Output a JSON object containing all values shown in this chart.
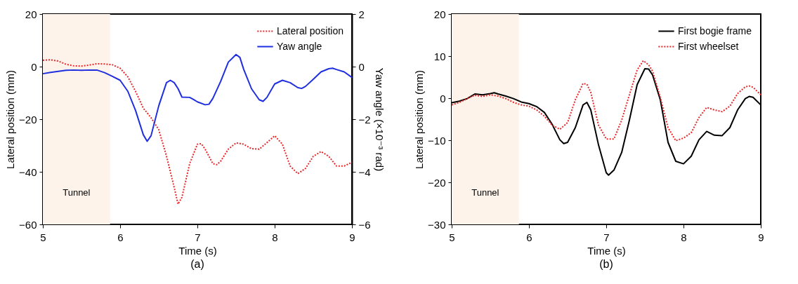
{
  "chart_data": [
    {
      "type": "line",
      "title": "(a)",
      "xlabel": "Time (s)",
      "ylabel": "Lateral position (mm)",
      "y2label": "Yaw angle (×10⁻³ rad)",
      "xlim": [
        5,
        9
      ],
      "xticks": [
        5,
        6,
        7,
        8,
        9
      ],
      "ylim": [
        -60,
        20
      ],
      "yticks": [
        -60,
        -40,
        -20,
        0,
        20
      ],
      "y2lim": [
        -6,
        2
      ],
      "y2ticks": [
        -6,
        -4,
        -2,
        0,
        2
      ],
      "grid": false,
      "legend": "top right",
      "marker": "none",
      "bands": [
        {
          "axis": "x",
          "from": 5,
          "to": 5.87,
          "label": "Tunnel",
          "color": "#fdf3ea"
        }
      ],
      "series": [
        {
          "name": "Lateral position",
          "color": "#e8282b",
          "line_style": "dotted",
          "x": [
            5.0,
            5.1,
            5.2,
            5.3,
            5.4,
            5.5,
            5.6,
            5.7,
            5.8,
            5.9,
            6.0,
            6.1,
            6.2,
            6.3,
            6.4,
            6.5,
            6.6,
            6.7,
            6.75,
            6.8,
            6.9,
            7.0,
            7.05,
            7.1,
            7.2,
            7.25,
            7.3,
            7.4,
            7.5,
            7.6,
            7.7,
            7.8,
            7.9,
            8.0,
            8.1,
            8.2,
            8.3,
            8.4,
            8.5,
            8.6,
            8.7,
            8.8,
            8.9,
            9.0
          ],
          "values": [
            2.4,
            2.6,
            2.1,
            0.9,
            0.3,
            0.2,
            0.6,
            1.1,
            1.0,
            0.7,
            -0.6,
            -3.9,
            -9.4,
            -15.8,
            -19.4,
            -24,
            -34,
            -46,
            -52.3,
            -49.7,
            -36.9,
            -29.5,
            -29.3,
            -31.4,
            -36.9,
            -37.3,
            -36,
            -31.4,
            -29,
            -29.5,
            -31.2,
            -31.4,
            -28.9,
            -26.3,
            -29.5,
            -37.8,
            -40.7,
            -38.7,
            -34.1,
            -32.3,
            -34.1,
            -37.8,
            -37.8,
            -36.4
          ]
        },
        {
          "name": "Yaw angle",
          "color": "#1f2fe0",
          "line_style": "solid",
          "axis": "y2",
          "x": [
            5.0,
            5.1,
            5.2,
            5.3,
            5.4,
            5.5,
            5.6,
            5.7,
            5.8,
            5.9,
            6.0,
            6.1,
            6.2,
            6.3,
            6.35,
            6.4,
            6.5,
            6.6,
            6.65,
            6.7,
            6.75,
            6.8,
            6.9,
            6.95,
            7.0,
            7.1,
            7.15,
            7.2,
            7.3,
            7.4,
            7.5,
            7.55,
            7.6,
            7.7,
            7.8,
            7.85,
            7.9,
            8.0,
            8.1,
            8.2,
            8.3,
            8.35,
            8.4,
            8.5,
            8.6,
            8.7,
            8.75,
            8.8,
            8.9,
            9.0
          ],
          "values": [
            -0.27,
            -0.22,
            -0.18,
            -0.14,
            -0.13,
            -0.14,
            -0.13,
            -0.13,
            -0.23,
            -0.37,
            -0.52,
            -0.94,
            -1.67,
            -2.59,
            -2.84,
            -2.63,
            -1.49,
            -0.61,
            -0.52,
            -0.61,
            -0.84,
            -1.16,
            -1.17,
            -1.25,
            -1.34,
            -1.45,
            -1.43,
            -1.21,
            -0.57,
            0.17,
            0.46,
            0.35,
            -0.11,
            -0.84,
            -1.26,
            -1.32,
            -1.17,
            -0.66,
            -0.52,
            -0.61,
            -0.8,
            -0.83,
            -0.75,
            -0.48,
            -0.2,
            -0.08,
            -0.06,
            -0.11,
            -0.2,
            -0.41
          ]
        }
      ]
    },
    {
      "type": "line",
      "title": "(b)",
      "xlabel": "Time (s)",
      "ylabel": "Lateral position (mm)",
      "xlim": [
        5,
        9
      ],
      "xticks": [
        5,
        6,
        7,
        8,
        9
      ],
      "ylim": [
        -30,
        20
      ],
      "yticks": [
        -30,
        -20,
        -10,
        0,
        10,
        20
      ],
      "grid": false,
      "legend": "top right",
      "marker": "none",
      "bands": [
        {
          "axis": "x",
          "from": 5,
          "to": 5.87,
          "label": "Tunnel",
          "color": "#fdf3ea"
        }
      ],
      "series": [
        {
          "name": "First bogie frame",
          "color": "#000000",
          "line_style": "solid",
          "x": [
            5.0,
            5.1,
            5.2,
            5.3,
            5.4,
            5.5,
            5.55,
            5.6,
            5.7,
            5.8,
            5.9,
            6.0,
            6.1,
            6.2,
            6.3,
            6.4,
            6.45,
            6.5,
            6.6,
            6.7,
            6.75,
            6.8,
            6.9,
            7.0,
            7.03,
            7.1,
            7.2,
            7.3,
            7.4,
            7.5,
            7.55,
            7.6,
            7.7,
            7.8,
            7.9,
            8.0,
            8.1,
            8.2,
            8.3,
            8.4,
            8.5,
            8.6,
            8.7,
            8.8,
            8.85,
            8.9,
            9.0
          ],
          "values": [
            -1.1,
            -0.7,
            -0.1,
            1.0,
            0.8,
            1.1,
            1.3,
            1.0,
            0.5,
            -0.1,
            -0.9,
            -1.3,
            -2.0,
            -3.4,
            -6.2,
            -9.9,
            -10.8,
            -10.5,
            -7.0,
            -1.6,
            -1.0,
            -2.8,
            -11.1,
            -17.7,
            -18.3,
            -17.1,
            -12.9,
            -5.2,
            3.2,
            7.0,
            6.9,
            5.5,
            -0.4,
            -10.5,
            -15.0,
            -15.6,
            -13.8,
            -9.9,
            -7.9,
            -8.8,
            -8.9,
            -7.0,
            -2.8,
            -0.1,
            0.4,
            0.2,
            -1.6
          ]
        },
        {
          "name": "First wheelset",
          "color": "#e8282b",
          "line_style": "dotted",
          "x": [
            5.0,
            5.1,
            5.2,
            5.3,
            5.4,
            5.5,
            5.6,
            5.7,
            5.8,
            5.9,
            6.0,
            6.1,
            6.2,
            6.3,
            6.4,
            6.5,
            6.6,
            6.7,
            6.75,
            6.8,
            6.9,
            7.0,
            7.1,
            7.2,
            7.3,
            7.4,
            7.48,
            7.55,
            7.6,
            7.7,
            7.8,
            7.9,
            8.0,
            8.1,
            8.2,
            8.3,
            8.4,
            8.5,
            8.6,
            8.7,
            8.8,
            8.85,
            8.9,
            9.0
          ],
          "values": [
            -1.6,
            -1.0,
            -0.1,
            0.7,
            0.4,
            0.8,
            0.5,
            -0.1,
            -1.0,
            -1.6,
            -1.9,
            -2.8,
            -4.3,
            -6.4,
            -7.4,
            -5.8,
            -0.4,
            3.5,
            3.3,
            1.4,
            -6.4,
            -9.7,
            -9.7,
            -5.2,
            0.8,
            6.7,
            8.9,
            7.9,
            6.4,
            0.2,
            -7.0,
            -10.1,
            -9.5,
            -8.2,
            -4.6,
            -2.2,
            -2.8,
            -3.2,
            -1.9,
            1.1,
            2.7,
            2.9,
            2.6,
            0.8
          ]
        }
      ]
    }
  ]
}
